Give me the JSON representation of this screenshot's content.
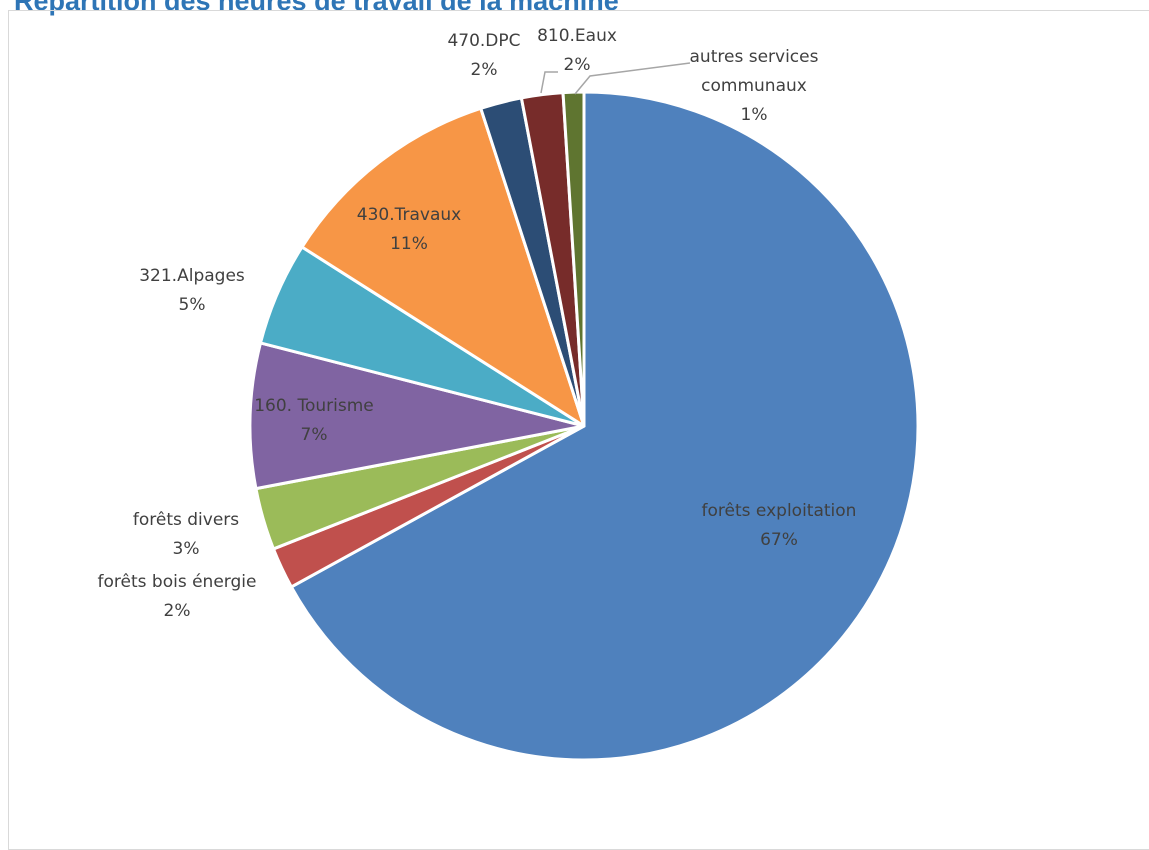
{
  "chart_data": {
    "type": "pie",
    "title": "Répartition des heures de travail de la machine",
    "series": [
      {
        "label": "forêts exploitation",
        "value": 67,
        "percent_label": "67%",
        "color": "#4f81bd"
      },
      {
        "label": "forêts bois énergie",
        "value": 2,
        "percent_label": "2%",
        "color": "#c0504d"
      },
      {
        "label": "forêts divers",
        "value": 3,
        "percent_label": "3%",
        "color": "#9bbb59"
      },
      {
        "label": "160. Tourisme",
        "value": 7,
        "percent_label": "7%",
        "color": "#8064a2"
      },
      {
        "label": "321.Alpages",
        "value": 5,
        "percent_label": "5%",
        "color": "#4bacc6"
      },
      {
        "label": "430.Travaux",
        "value": 11,
        "percent_label": "11%",
        "color": "#f79646"
      },
      {
        "label": "470.DPC",
        "value": 2,
        "percent_label": "2%",
        "color": "#2c4d75"
      },
      {
        "label": "810.Eaux",
        "value": 2,
        "percent_label": "2%",
        "color": "#772c2a"
      },
      {
        "label": "autres services communaux",
        "value": 1,
        "percent_label": "1%",
        "color": "#5f7530"
      }
    ],
    "legend": "none"
  }
}
